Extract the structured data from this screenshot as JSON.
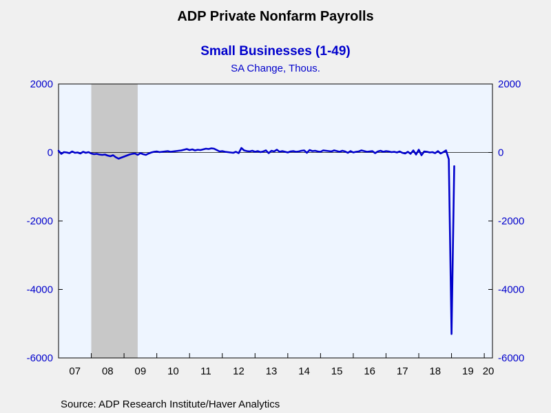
{
  "chart_data": {
    "type": "line",
    "title": "ADP Private Nonfarm Payrolls",
    "subtitle": "Small Businesses (1-49)",
    "unit_label": "SA Change, Thous.",
    "source": "Source:  ADP Research Institute/Haver Analytics",
    "y_ticks": [
      "2000",
      "0",
      "-2000",
      "-4000",
      "-6000"
    ],
    "y_tick_values": [
      2000,
      0,
      -2000,
      -4000,
      -6000
    ],
    "ylim": [
      -6000,
      2000
    ],
    "x_ticks": [
      "07",
      "08",
      "09",
      "10",
      "11",
      "12",
      "13",
      "14",
      "15",
      "16",
      "17",
      "18",
      "19",
      "20"
    ],
    "x_range": [
      "2007-01",
      "2020-04"
    ],
    "grid": false,
    "recession_shading": {
      "start": "2008-01",
      "end": "2009-06",
      "color": "#c8c8c8"
    },
    "plot_background": "#eef5ff",
    "series": [
      {
        "color": "#0000cc",
        "start": "2007-01",
        "values": [
          50,
          -40,
          10,
          0,
          -20,
          30,
          -10,
          0,
          -30,
          20,
          -10,
          10,
          -30,
          -50,
          -40,
          -60,
          -70,
          -60,
          -90,
          -110,
          -80,
          -140,
          -180,
          -150,
          -120,
          -90,
          -60,
          -40,
          -30,
          -70,
          -20,
          -50,
          -70,
          -30,
          0,
          20,
          30,
          10,
          20,
          30,
          40,
          20,
          30,
          40,
          50,
          60,
          80,
          100,
          70,
          90,
          60,
          80,
          70,
          90,
          110,
          100,
          120,
          110,
          70,
          30,
          40,
          20,
          10,
          0,
          -10,
          20,
          -20,
          130,
          60,
          40,
          30,
          50,
          20,
          40,
          10,
          30,
          60,
          -20,
          50,
          30,
          80,
          20,
          40,
          20,
          0,
          30,
          40,
          20,
          30,
          50,
          60,
          -10,
          70,
          40,
          50,
          30,
          20,
          60,
          50,
          40,
          30,
          60,
          40,
          20,
          50,
          30,
          -10,
          40,
          0,
          20,
          30,
          60,
          40,
          20,
          30,
          40,
          -20,
          30,
          50,
          20,
          40,
          30,
          10,
          20,
          0,
          30,
          -10,
          -30,
          20,
          -40,
          60,
          -60,
          80,
          -80,
          30,
          20,
          0,
          10,
          -20,
          40,
          -30,
          10,
          60,
          -200,
          -5300,
          -400
        ]
      }
    ]
  }
}
